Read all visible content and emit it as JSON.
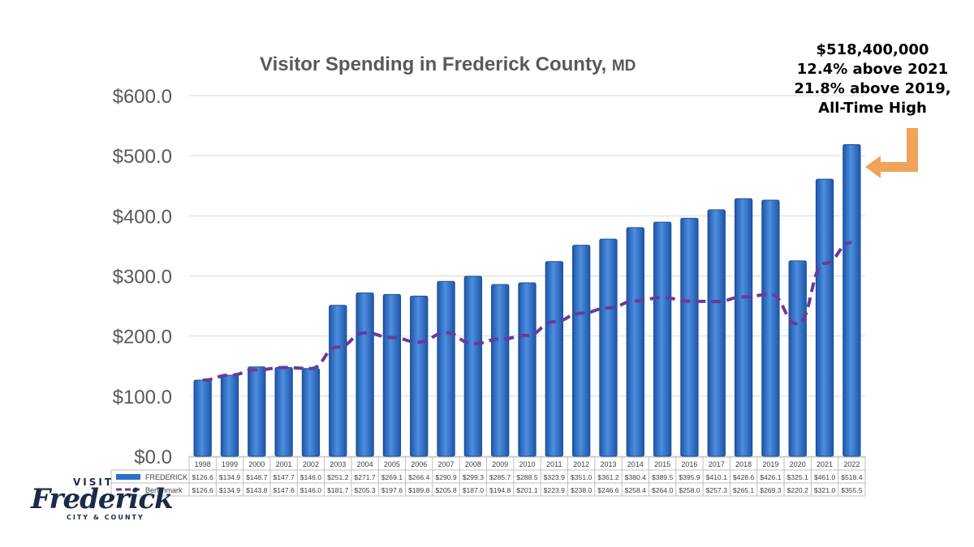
{
  "chart_data": {
    "type": "bar",
    "title": "Visitor Spending in Frederick County,",
    "title_suffix": "MD",
    "categories": [
      "1998",
      "1999",
      "2000",
      "2001",
      "2002",
      "2003",
      "2004",
      "2005",
      "2006",
      "2007",
      "2008",
      "2009",
      "2010",
      "2011",
      "2012",
      "2013",
      "2014",
      "2015",
      "2016",
      "2017",
      "2018",
      "2019",
      "2020",
      "2021",
      "2022"
    ],
    "series": [
      {
        "name": "FREDERICK",
        "type": "bar",
        "color": "#2e6fc7",
        "values": [
          126.6,
          134.9,
          148.7,
          147.7,
          146.0,
          251.2,
          271.7,
          269.1,
          266.4,
          290.9,
          299.3,
          285.7,
          288.5,
          323.9,
          351.0,
          361.2,
          380.4,
          389.5,
          395.9,
          410.1,
          428.6,
          426.1,
          325.1,
          461.0,
          518.4
        ],
        "labels": [
          "$126.6",
          "$134.9",
          "$148.7",
          "$147.7",
          "$146.0",
          "$251.2",
          "$271.7",
          "$269.1",
          "$266.4",
          "$290.9",
          "$299.3",
          "$285.7",
          "$288.5",
          "$323.9",
          "$351.0",
          "$361.2",
          "$380.4",
          "$389.5",
          "$395.9",
          "$410.1",
          "$428.6",
          "$426.1",
          "$325.1",
          "$461.0",
          "$518.4"
        ]
      },
      {
        "name": "Benchmark",
        "type": "line",
        "style": "dashed",
        "color": "#6a3a9a",
        "values": [
          126.6,
          134.9,
          143.8,
          147.6,
          146.0,
          181.7,
          205.3,
          197.6,
          189.8,
          205.8,
          187.0,
          194.8,
          201.1,
          223.9,
          238.0,
          246.6,
          258.4,
          264.0,
          258.0,
          257.3,
          265.1,
          269.3,
          220.2,
          321.0,
          355.5
        ],
        "labels": [
          "$126.6",
          "$134.9",
          "$143.8",
          "$147.6",
          "$146.0",
          "$181.7",
          "$205.3",
          "$197.6",
          "$189.8",
          "$205.8",
          "$187.0",
          "$194.8",
          "$201.1",
          "$223.9",
          "$238.0",
          "$246.6",
          "$258.4",
          "$264.0",
          "$258.0",
          "$257.3",
          "$265.1",
          "$269.3",
          "$220.2",
          "$321.0",
          "$355.5"
        ]
      }
    ],
    "ylim": [
      0,
      600
    ],
    "yticks": [
      "$0.0",
      "$100.0",
      "$200.0",
      "$300.0",
      "$400.0",
      "$500.0",
      "$600.0"
    ],
    "grid": true,
    "legend": "data-table"
  },
  "callout": {
    "lines": [
      "$518,400,000",
      "12.4% above 2021",
      "21.8% above 2019,",
      "All-Time High"
    ],
    "arrow_color": "#f0a35a"
  },
  "logo": {
    "top": "VISIT",
    "main": "Frederick",
    "sub": "CITY & COUNTY",
    "color": "#1c2a4a"
  }
}
